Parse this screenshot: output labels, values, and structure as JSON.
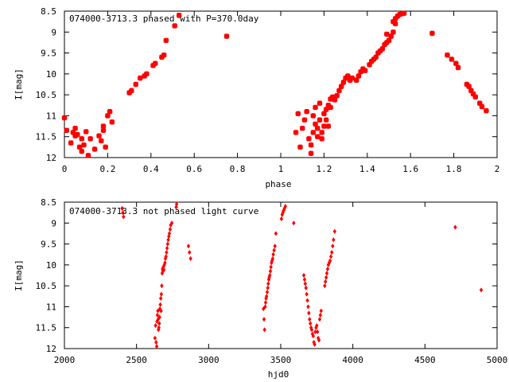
{
  "charts": [
    {
      "title": "074000-3713.3 phased with P=370.0day",
      "xlabel": "phase",
      "ylabel": "I[mag]",
      "xlim": [
        0,
        2
      ],
      "ylim": [
        12,
        8.5
      ],
      "xticks": [
        "0",
        "0.2",
        "0.4",
        "0.6",
        "0.8",
        "1",
        "1.2",
        "1.4",
        "1.6",
        "1.8",
        "2"
      ],
      "yticks": [
        "8.5",
        "9",
        "9.5",
        "10",
        "10.5",
        "11",
        "11.5",
        "12"
      ]
    },
    {
      "title": "074000-3713.3 not phased light curve",
      "xlabel": "hjd0",
      "ylabel": "I[mag]",
      "xlim": [
        2000,
        5000
      ],
      "ylim": [
        12,
        8.5
      ],
      "xticks": [
        "2000",
        "2500",
        "3000",
        "3500",
        "4000",
        "4500",
        "5000"
      ],
      "yticks": [
        "8.5",
        "9",
        "9.5",
        "10",
        "10.5",
        "11",
        "11.5",
        "12"
      ]
    }
  ],
  "chart_data": [
    {
      "type": "scatter",
      "title": "074000-3713.3 phased with P=370.0day",
      "xlabel": "phase",
      "ylabel": "I[mag]",
      "xlim": [
        0,
        2
      ],
      "ylim": [
        12,
        8.5
      ],
      "y_inverted": true,
      "grid": false,
      "marker_color": "#ff0000",
      "points": [
        [
          0.0,
          11.05
        ],
        [
          0.01,
          11.35
        ],
        [
          0.03,
          11.65
        ],
        [
          0.04,
          11.4
        ],
        [
          0.05,
          11.48
        ],
        [
          0.05,
          11.3
        ],
        [
          0.06,
          11.45
        ],
        [
          0.07,
          11.75
        ],
        [
          0.08,
          11.85
        ],
        [
          0.08,
          11.55
        ],
        [
          0.09,
          11.7
        ],
        [
          0.1,
          11.38
        ],
        [
          0.11,
          11.95
        ],
        [
          0.12,
          11.55
        ],
        [
          0.14,
          11.8
        ],
        [
          0.16,
          11.48
        ],
        [
          0.17,
          11.6
        ],
        [
          0.18,
          11.35
        ],
        [
          0.18,
          11.25
        ],
        [
          0.19,
          11.75
        ],
        [
          0.2,
          11.0
        ],
        [
          0.21,
          10.9
        ],
        [
          0.22,
          11.15
        ],
        [
          0.3,
          10.45
        ],
        [
          0.31,
          10.4
        ],
        [
          0.33,
          10.25
        ],
        [
          0.35,
          10.1
        ],
        [
          0.37,
          10.05
        ],
        [
          0.38,
          10.0
        ],
        [
          0.41,
          9.8
        ],
        [
          0.42,
          9.75
        ],
        [
          0.45,
          9.6
        ],
        [
          0.46,
          9.55
        ],
        [
          0.47,
          9.2
        ],
        [
          0.51,
          8.85
        ],
        [
          0.53,
          8.6
        ],
        [
          0.75,
          9.1
        ],
        [
          1.07,
          11.4
        ],
        [
          1.08,
          10.95
        ],
        [
          1.09,
          11.75
        ],
        [
          1.1,
          11.3
        ],
        [
          1.11,
          11.1
        ],
        [
          1.12,
          10.9
        ],
        [
          1.13,
          11.55
        ],
        [
          1.14,
          11.9
        ],
        [
          1.14,
          11.7
        ],
        [
          1.15,
          11.0
        ],
        [
          1.15,
          11.4
        ],
        [
          1.16,
          10.8
        ],
        [
          1.16,
          11.2
        ],
        [
          1.17,
          11.3
        ],
        [
          1.17,
          11.5
        ],
        [
          1.18,
          10.7
        ],
        [
          1.18,
          11.1
        ],
        [
          1.19,
          11.4
        ],
        [
          1.19,
          11.55
        ],
        [
          1.2,
          11.25
        ],
        [
          1.2,
          10.95
        ],
        [
          1.21,
          10.85
        ],
        [
          1.21,
          11.1
        ],
        [
          1.22,
          11.25
        ],
        [
          1.22,
          10.75
        ],
        [
          1.23,
          10.6
        ],
        [
          1.23,
          10.8
        ],
        [
          1.24,
          10.55
        ],
        [
          1.25,
          10.62
        ],
        [
          1.26,
          10.52
        ],
        [
          1.27,
          10.4
        ],
        [
          1.28,
          10.3
        ],
        [
          1.29,
          10.2
        ],
        [
          1.3,
          10.1
        ],
        [
          1.31,
          10.05
        ],
        [
          1.32,
          10.15
        ],
        [
          1.33,
          10.1
        ],
        [
          1.35,
          10.15
        ],
        [
          1.36,
          10.05
        ],
        [
          1.37,
          9.95
        ],
        [
          1.38,
          9.88
        ],
        [
          1.39,
          9.92
        ],
        [
          1.41,
          9.78
        ],
        [
          1.42,
          9.7
        ],
        [
          1.43,
          9.65
        ],
        [
          1.44,
          9.6
        ],
        [
          1.45,
          9.5
        ],
        [
          1.46,
          9.45
        ],
        [
          1.47,
          9.4
        ],
        [
          1.48,
          9.3
        ],
        [
          1.49,
          9.25
        ],
        [
          1.49,
          9.05
        ],
        [
          1.5,
          9.2
        ],
        [
          1.51,
          9.1
        ],
        [
          1.52,
          8.75
        ],
        [
          1.52,
          9.0
        ],
        [
          1.53,
          8.8
        ],
        [
          1.53,
          8.68
        ],
        [
          1.54,
          8.62
        ],
        [
          1.55,
          8.58
        ],
        [
          1.56,
          8.56
        ],
        [
          1.57,
          8.55
        ],
        [
          1.7,
          9.03
        ],
        [
          1.77,
          9.55
        ],
        [
          1.79,
          9.65
        ],
        [
          1.81,
          9.75
        ],
        [
          1.82,
          9.85
        ],
        [
          1.86,
          10.25
        ],
        [
          1.87,
          10.3
        ],
        [
          1.88,
          10.4
        ],
        [
          1.89,
          10.48
        ],
        [
          1.9,
          10.55
        ],
        [
          1.92,
          10.7
        ],
        [
          1.93,
          10.78
        ],
        [
          1.95,
          10.88
        ]
      ]
    },
    {
      "type": "scatter",
      "title": "074000-3713.3 not phased light curve",
      "xlabel": "hjd0",
      "ylabel": "I[mag]",
      "xlim": [
        2000,
        5000
      ],
      "ylim": [
        12,
        8.5
      ],
      "y_inverted": true,
      "grid": false,
      "marker_color": "#ff0000",
      "points": [
        [
          2400,
          8.65
        ],
        [
          2405,
          8.75
        ],
        [
          2410,
          8.85
        ],
        [
          2628,
          11.75
        ],
        [
          2632,
          11.45
        ],
        [
          2636,
          11.85
        ],
        [
          2640,
          11.95
        ],
        [
          2642,
          11.35
        ],
        [
          2645,
          11.2
        ],
        [
          2648,
          11.1
        ],
        [
          2650,
          11.3
        ],
        [
          2652,
          11.55
        ],
        [
          2655,
          11.5
        ],
        [
          2658,
          11.4
        ],
        [
          2660,
          11.25
        ],
        [
          2662,
          11.05
        ],
        [
          2665,
          10.95
        ],
        [
          2668,
          10.8
        ],
        [
          2670,
          11.1
        ],
        [
          2672,
          10.7
        ],
        [
          2675,
          10.5
        ],
        [
          2678,
          10.2
        ],
        [
          2680,
          10.1
        ],
        [
          2683,
          10.15
        ],
        [
          2686,
          10.05
        ],
        [
          2690,
          10.12
        ],
        [
          2693,
          10.0
        ],
        [
          2697,
          9.95
        ],
        [
          2700,
          9.85
        ],
        [
          2704,
          9.8
        ],
        [
          2708,
          9.7
        ],
        [
          2712,
          9.6
        ],
        [
          2716,
          9.5
        ],
        [
          2720,
          9.4
        ],
        [
          2724,
          9.32
        ],
        [
          2728,
          9.25
        ],
        [
          2733,
          9.15
        ],
        [
          2737,
          9.05
        ],
        [
          2745,
          9.0
        ],
        [
          2775,
          8.62
        ],
        [
          2778,
          8.55
        ],
        [
          2860,
          9.55
        ],
        [
          2867,
          9.7
        ],
        [
          2875,
          9.85
        ],
        [
          3380,
          11.05
        ],
        [
          3384,
          11.3
        ],
        [
          3388,
          11.55
        ],
        [
          3392,
          11.0
        ],
        [
          3395,
          10.9
        ],
        [
          3398,
          10.8
        ],
        [
          3402,
          10.75
        ],
        [
          3406,
          10.65
        ],
        [
          3410,
          10.55
        ],
        [
          3413,
          10.45
        ],
        [
          3417,
          10.35
        ],
        [
          3420,
          10.3
        ],
        [
          3424,
          10.25
        ],
        [
          3428,
          10.15
        ],
        [
          3432,
          10.05
        ],
        [
          3436,
          9.95
        ],
        [
          3440,
          9.9
        ],
        [
          3444,
          9.85
        ],
        [
          3448,
          9.75
        ],
        [
          3454,
          9.65
        ],
        [
          3460,
          9.55
        ],
        [
          3466,
          9.25
        ],
        [
          3505,
          8.9
        ],
        [
          3510,
          8.8
        ],
        [
          3515,
          8.75
        ],
        [
          3520,
          8.7
        ],
        [
          3526,
          8.65
        ],
        [
          3532,
          8.6
        ],
        [
          3590,
          9.0
        ],
        [
          3660,
          10.25
        ],
        [
          3665,
          10.35
        ],
        [
          3670,
          10.45
        ],
        [
          3675,
          10.55
        ],
        [
          3680,
          10.7
        ],
        [
          3685,
          10.85
        ],
        [
          3690,
          11.0
        ],
        [
          3695,
          11.15
        ],
        [
          3700,
          11.3
        ],
        [
          3705,
          11.4
        ],
        [
          3710,
          11.5
        ],
        [
          3715,
          11.55
        ],
        [
          3720,
          11.65
        ],
        [
          3725,
          11.7
        ],
        [
          3730,
          11.85
        ],
        [
          3735,
          11.9
        ],
        [
          3740,
          11.6
        ],
        [
          3745,
          11.5
        ],
        [
          3750,
          11.45
        ],
        [
          3755,
          11.6
        ],
        [
          3760,
          11.75
        ],
        [
          3765,
          11.8
        ],
        [
          3770,
          11.3
        ],
        [
          3775,
          11.2
        ],
        [
          3780,
          11.1
        ],
        [
          3805,
          10.5
        ],
        [
          3810,
          10.4
        ],
        [
          3815,
          10.3
        ],
        [
          3820,
          10.2
        ],
        [
          3825,
          10.1
        ],
        [
          3830,
          10.0
        ],
        [
          3836,
          9.95
        ],
        [
          3842,
          9.9
        ],
        [
          3848,
          9.8
        ],
        [
          3854,
          9.7
        ],
        [
          3860,
          9.55
        ],
        [
          3866,
          9.4
        ],
        [
          3874,
          9.2
        ],
        [
          4710,
          9.1
        ],
        [
          4890,
          10.6
        ]
      ]
    }
  ]
}
